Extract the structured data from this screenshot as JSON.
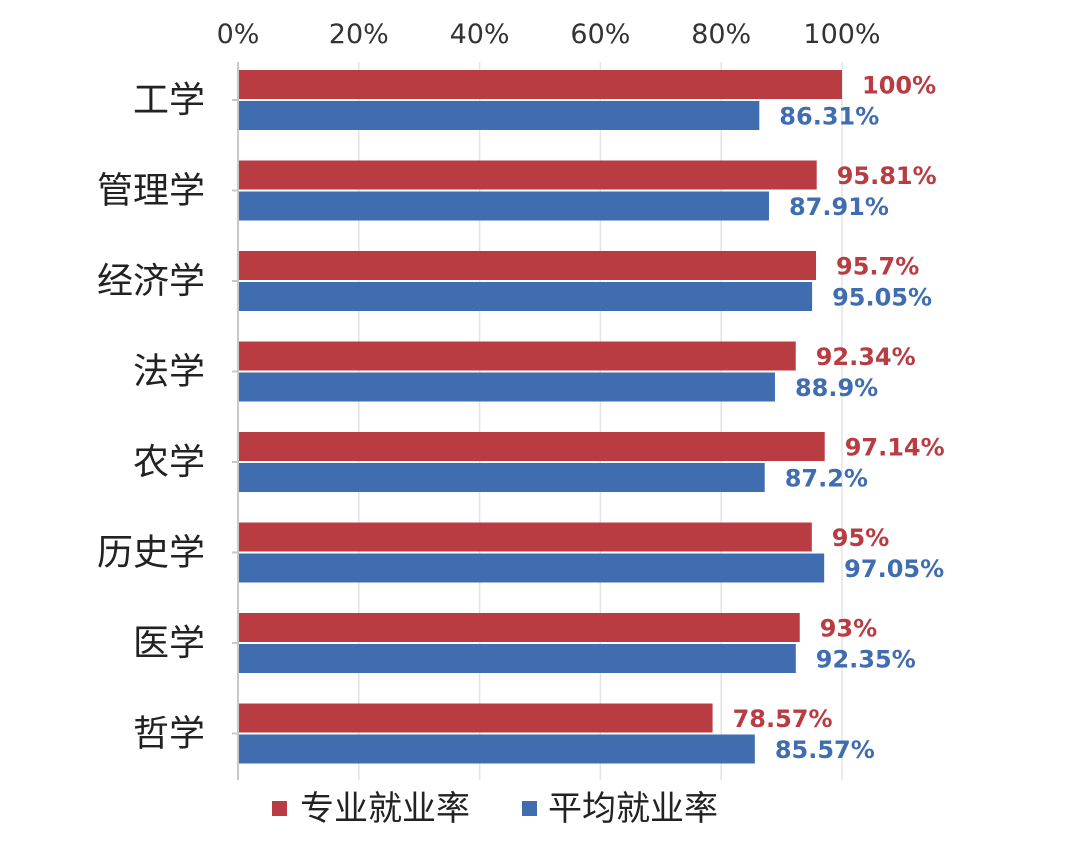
{
  "chart_data": {
    "type": "bar",
    "orientation": "horizontal",
    "categories": [
      "工学",
      "管理学",
      "经济学",
      "法学",
      "农学",
      "历史学",
      "医学",
      "哲学"
    ],
    "series": [
      {
        "name": "专业就业率",
        "color": "#b83c42",
        "values": [
          100,
          95.81,
          95.7,
          92.34,
          97.14,
          95,
          93,
          78.57
        ],
        "labels": [
          "100%",
          "95.81%",
          "95.7%",
          "92.34%",
          "97.14%",
          "95%",
          "93%",
          "78.57%"
        ]
      },
      {
        "name": "平均就业率",
        "color": "#3f6db0",
        "values": [
          86.31,
          87.91,
          95.05,
          88.9,
          87.2,
          97.05,
          92.35,
          85.57
        ],
        "labels": [
          "86.31%",
          "87.91%",
          "95.05%",
          "88.9%",
          "87.2%",
          "97.05%",
          "92.35%",
          "85.57%"
        ]
      }
    ],
    "xlim": [
      0,
      100
    ],
    "x_ticks": [
      "0%",
      "20%",
      "40%",
      "60%",
      "80%",
      "100%"
    ],
    "x_axis_position": "top",
    "grid": true,
    "legend_position": "bottom"
  }
}
